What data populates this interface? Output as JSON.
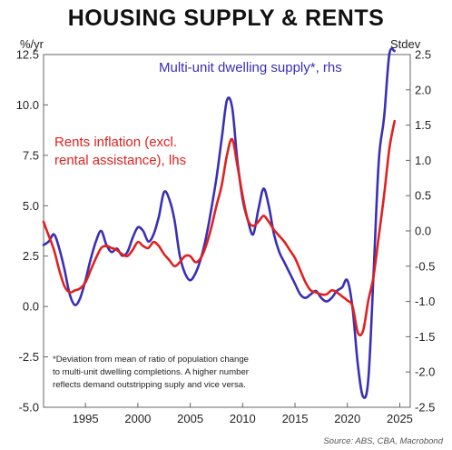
{
  "chart_data": {
    "type": "line",
    "title": "HOUSING SUPPLY & RENTS",
    "left_unit": "%/yr",
    "right_unit": "Stdev",
    "left_ylim": [
      -5.0,
      12.5
    ],
    "right_ylim": [
      -2.5,
      2.5
    ],
    "left_ticks": [
      "12.5",
      "10.0",
      "7.5",
      "5.0",
      "2.5",
      "0.0",
      "-2.5",
      "-5.0"
    ],
    "right_ticks": [
      "2.5",
      "2.0",
      "1.5",
      "1.0",
      "0.5",
      "0.0",
      "-0.5",
      "-1.0",
      "-1.5",
      "-2.0",
      "-2.5"
    ],
    "x_range": [
      1991,
      2026
    ],
    "x_ticks": [
      "1995",
      "2000",
      "2005",
      "2010",
      "2015",
      "2020",
      "2025"
    ],
    "grid": false,
    "colors": {
      "supply": "#3a2fb5",
      "rents": "#e0211f"
    },
    "series": [
      {
        "name": "Multi-unit dwelling supply*, rhs",
        "axis": "right",
        "color": "#3a2fb5",
        "x": [
          1991.0,
          1991.5,
          1992.0,
          1992.5,
          1993.0,
          1993.5,
          1994.0,
          1994.5,
          1995.0,
          1995.5,
          1996.0,
          1996.5,
          1997.0,
          1997.5,
          1998.0,
          1998.5,
          1999.0,
          1999.5,
          2000.0,
          2000.5,
          2001.0,
          2001.5,
          2002.0,
          2002.5,
          2003.0,
          2003.5,
          2004.0,
          2004.5,
          2005.0,
          2005.5,
          2006.0,
          2006.5,
          2007.0,
          2007.5,
          2008.0,
          2008.5,
          2009.0,
          2009.5,
          2010.0,
          2010.5,
          2011.0,
          2011.5,
          2012.0,
          2012.5,
          2013.0,
          2013.5,
          2014.0,
          2014.5,
          2015.0,
          2015.5,
          2016.0,
          2016.5,
          2017.0,
          2017.5,
          2018.0,
          2018.5,
          2019.0,
          2019.5,
          2020.0,
          2020.5,
          2021.0,
          2021.5,
          2022.0,
          2022.5,
          2023.0,
          2023.5,
          2024.0,
          2024.5
        ],
        "values": [
          -0.2,
          -0.15,
          -0.05,
          -0.25,
          -0.55,
          -0.9,
          -1.05,
          -0.95,
          -0.7,
          -0.4,
          -0.15,
          0.0,
          -0.2,
          -0.3,
          -0.25,
          -0.35,
          -0.3,
          -0.1,
          0.05,
          0.0,
          -0.15,
          -0.05,
          0.2,
          0.55,
          0.45,
          0.15,
          -0.35,
          -0.6,
          -0.7,
          -0.6,
          -0.4,
          -0.1,
          0.3,
          0.75,
          1.3,
          1.85,
          1.75,
          1.0,
          0.45,
          0.15,
          -0.05,
          0.3,
          0.6,
          0.35,
          -0.05,
          -0.3,
          -0.45,
          -0.6,
          -0.75,
          -0.9,
          -0.95,
          -0.9,
          -0.85,
          -0.95,
          -1.0,
          -0.95,
          -0.85,
          -0.8,
          -0.7,
          -1.1,
          -1.9,
          -2.35,
          -2.1,
          -0.6,
          1.0,
          1.6,
          2.5,
          2.55
        ]
      },
      {
        "name": "Rents inflation (excl. rental assistance), lhs",
        "axis": "left",
        "color": "#e0211f",
        "x": [
          1991.0,
          1991.5,
          1992.0,
          1992.5,
          1993.0,
          1993.5,
          1994.0,
          1994.5,
          1995.0,
          1995.5,
          1996.0,
          1996.5,
          1997.0,
          1997.5,
          1998.0,
          1998.5,
          1999.0,
          1999.5,
          2000.0,
          2000.5,
          2001.0,
          2001.5,
          2002.0,
          2002.5,
          2003.0,
          2003.5,
          2004.0,
          2004.5,
          2005.0,
          2005.5,
          2006.0,
          2006.5,
          2007.0,
          2007.5,
          2008.0,
          2008.5,
          2009.0,
          2009.5,
          2010.0,
          2010.5,
          2011.0,
          2011.5,
          2012.0,
          2012.5,
          2013.0,
          2013.5,
          2014.0,
          2014.5,
          2015.0,
          2015.5,
          2016.0,
          2016.5,
          2017.0,
          2017.5,
          2018.0,
          2018.5,
          2019.0,
          2019.5,
          2020.0,
          2020.5,
          2021.0,
          2021.5,
          2022.0,
          2022.5,
          2023.0,
          2023.5,
          2024.0,
          2024.5
        ],
        "values": [
          4.2,
          3.5,
          2.8,
          1.8,
          1.0,
          0.7,
          0.8,
          0.9,
          1.2,
          1.8,
          2.4,
          2.9,
          3.0,
          2.9,
          2.8,
          2.6,
          2.5,
          2.8,
          3.2,
          3.0,
          2.9,
          3.2,
          3.0,
          2.6,
          2.3,
          2.0,
          2.2,
          2.5,
          2.5,
          2.2,
          2.4,
          3.0,
          3.9,
          5.0,
          6.0,
          7.5,
          8.3,
          7.0,
          5.5,
          4.3,
          4.0,
          4.2,
          4.5,
          4.2,
          3.8,
          3.5,
          3.2,
          2.8,
          2.4,
          1.8,
          1.2,
          0.8,
          0.7,
          0.6,
          0.6,
          0.8,
          0.7,
          0.5,
          0.3,
          0.0,
          -1.3,
          -1.2,
          0.3,
          1.5,
          3.5,
          5.5,
          7.8,
          9.2
        ]
      }
    ],
    "annotations": {
      "supply_label": "Multi-unit dwelling supply*, rhs",
      "rents_label_line1": "Rents inflation (excl.",
      "rents_label_line2": "rental assistance), lhs",
      "footnote_line1": "*Deviation from mean of ratio of population change",
      "footnote_line2": "to multi-unit dwelling completions. A higher number",
      "footnote_line3": "reflects demand outstripping suply and vice versa.",
      "source": "Source: ABS, CBA, Macrobond"
    }
  }
}
